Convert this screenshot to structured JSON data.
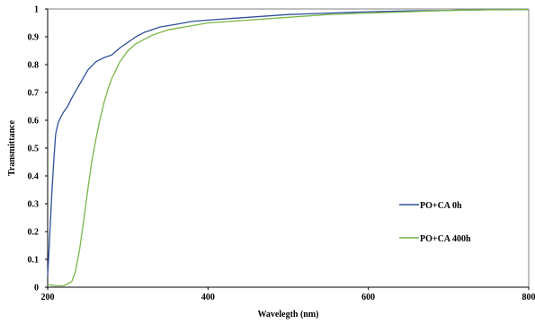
{
  "chart_data": {
    "type": "line",
    "xlabel": "Wavelegth (nm)",
    "ylabel": "Transmittance",
    "xlim": [
      200,
      800
    ],
    "ylim": [
      0,
      1
    ],
    "x_ticks": [
      200,
      400,
      600,
      800
    ],
    "y_ticks": [
      0,
      0.1,
      0.2,
      0.3,
      0.4,
      0.5,
      0.6,
      0.7,
      0.8,
      0.9,
      1
    ],
    "grid": false,
    "legend_position": "right",
    "series": [
      {
        "name": "PO+CA 0h",
        "color": "#2f4f9a",
        "x": [
          200,
          202,
          205,
          208,
          210,
          213,
          216,
          220,
          225,
          230,
          240,
          250,
          260,
          270,
          280,
          290,
          300,
          310,
          320,
          340,
          360,
          380,
          400,
          450,
          500,
          550,
          600,
          650,
          700,
          750,
          800
        ],
        "y": [
          0.04,
          0.15,
          0.33,
          0.47,
          0.55,
          0.59,
          0.61,
          0.63,
          0.65,
          0.68,
          0.73,
          0.78,
          0.81,
          0.825,
          0.835,
          0.86,
          0.88,
          0.9,
          0.915,
          0.935,
          0.945,
          0.955,
          0.96,
          0.97,
          0.98,
          0.985,
          0.99,
          0.993,
          0.995,
          0.997,
          0.998
        ]
      },
      {
        "name": "PO+CA 400h",
        "color": "#7ab648",
        "x": [
          200,
          210,
          220,
          230,
          235,
          240,
          245,
          250,
          255,
          260,
          265,
          270,
          275,
          280,
          285,
          290,
          300,
          310,
          320,
          330,
          340,
          350,
          360,
          380,
          400,
          450,
          500,
          550,
          600,
          650,
          700,
          750,
          800
        ],
        "y": [
          0.01,
          0.005,
          0.005,
          0.02,
          0.06,
          0.14,
          0.24,
          0.35,
          0.45,
          0.53,
          0.6,
          0.66,
          0.71,
          0.75,
          0.78,
          0.81,
          0.85,
          0.875,
          0.89,
          0.905,
          0.915,
          0.925,
          0.93,
          0.94,
          0.95,
          0.96,
          0.97,
          0.98,
          0.985,
          0.99,
          0.995,
          0.997,
          0.998
        ]
      }
    ]
  }
}
